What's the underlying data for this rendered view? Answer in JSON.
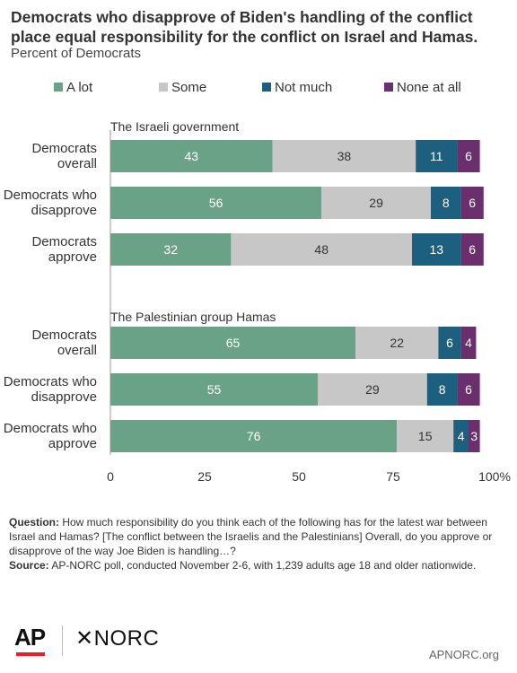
{
  "header": {
    "title": "Democrats who disapprove of Biden's handling of the conflict place equal responsibility for the conflict on Israel and Hamas.",
    "subtitle": "Percent of Democrats"
  },
  "legend": [
    {
      "label": "A lot",
      "color": "#6aa287"
    },
    {
      "label": "Some",
      "color": "#c7c7c7"
    },
    {
      "label": "Not much",
      "color": "#1d5f7e"
    },
    {
      "label": "None at all",
      "color": "#6b2f6e"
    }
  ],
  "chart_data": {
    "type": "bar",
    "orientation": "horizontal",
    "stacked": true,
    "xlim": [
      0,
      100
    ],
    "x_ticks": [
      "0",
      "25",
      "50",
      "75",
      "100%"
    ],
    "series_names": [
      "A lot",
      "Some",
      "Not much",
      "None at all"
    ],
    "groups": [
      {
        "title": "The Israeli government",
        "rows": [
          {
            "label": "Democrats overall",
            "label_lines": [
              "Democrats",
              "overall"
            ],
            "values": [
              43,
              38,
              11,
              6
            ]
          },
          {
            "label": "Democrats who disapprove",
            "label_lines": [
              "Democrats who",
              "disapprove"
            ],
            "values": [
              56,
              29,
              8,
              6
            ]
          },
          {
            "label": "Democrats approve",
            "label_lines": [
              "Democrats",
              "approve"
            ],
            "values": [
              32,
              48,
              13,
              6
            ]
          }
        ]
      },
      {
        "title": "The Palestinian group Hamas",
        "rows": [
          {
            "label": "Democrats overall",
            "label_lines": [
              "Democrats",
              "overall"
            ],
            "values": [
              65,
              22,
              6,
              4
            ]
          },
          {
            "label": "Democrats who disapprove",
            "label_lines": [
              "Democrats who",
              "disapprove"
            ],
            "values": [
              55,
              29,
              8,
              6
            ]
          },
          {
            "label": "Democrats who approve",
            "label_lines": [
              "Democrats who",
              "approve"
            ],
            "values": [
              76,
              15,
              4,
              3
            ]
          }
        ]
      }
    ]
  },
  "footnote": {
    "question_label": "Question:",
    "question_text": " How much responsibility do you think each of the following has for the latest war between Israel and Hamas? [The conflict between the Israelis and the Palestinians] Overall, do you approve or disapprove of the way Joe Biden is handling…?",
    "source_label": "Source:",
    "source_text": " AP-NORC poll, conducted November 2-6, with 1,239 adults age 18 and older nationwide."
  },
  "branding": {
    "ap": "AP",
    "norc": "NORC",
    "norc_mark": "✕",
    "url": "APNORC.org"
  }
}
